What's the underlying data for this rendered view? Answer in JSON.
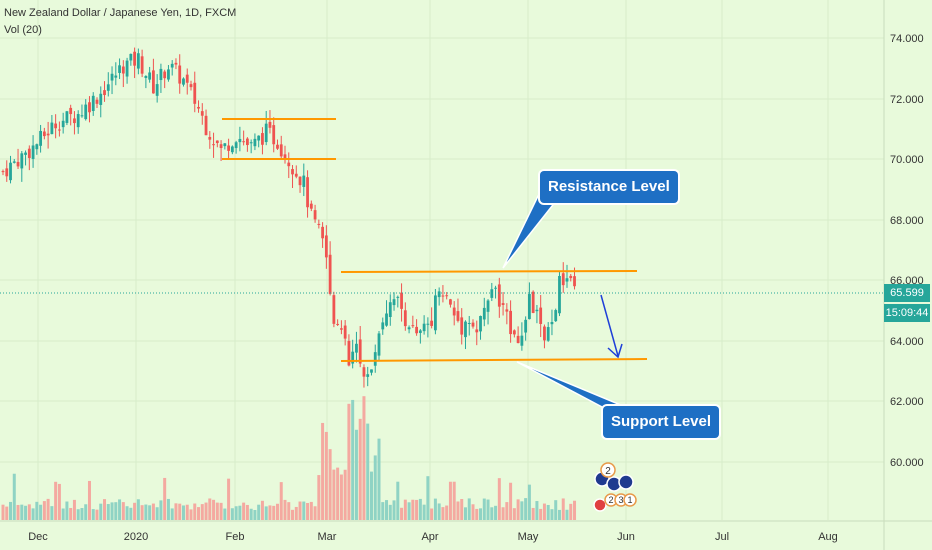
{
  "chart_info": {
    "symbol_title": "New Zealand Dollar / Japanese Yen, 1D, FXCM",
    "volume_indicator": "Vol (20)",
    "current_price": "65.599",
    "countdown": "15:09:44"
  },
  "annotations": {
    "resistance_label": "Resistance Level",
    "support_label": "Support Level",
    "event_badge_top": "2",
    "event_badge_bottom_1": "2",
    "event_badge_bottom_2": "3",
    "event_badge_bottom_3": "1"
  },
  "colors": {
    "background": "#e8fadb",
    "up_candle": "#26a69a",
    "down_candle": "#ef5350",
    "level_line": "#ff9800",
    "callout": "#1e6fc4",
    "arrow": "#1e3fd8",
    "price_tag": "#26a69a"
  },
  "chart_data": {
    "type": "candlestick",
    "title": "New Zealand Dollar / Japanese Yen, 1D, FXCM",
    "y_axis": {
      "ticks": [
        "74.000",
        "72.000",
        "70.000",
        "68.000",
        "66.000",
        "64.000",
        "62.000",
        "60.000"
      ],
      "range": [
        57.5,
        75.5
      ]
    },
    "x_axis": {
      "ticks": [
        "Dec",
        "2020",
        "Feb",
        "Mar",
        "Apr",
        "May",
        "Jun",
        "Jul",
        "Aug"
      ]
    },
    "levels": [
      {
        "name": "Resistance Level",
        "price": 66.25
      },
      {
        "name": "Support Level",
        "price": 63.4
      },
      {
        "name": "consolidation-top",
        "price": 71.3
      },
      {
        "name": "consolidation-bottom",
        "price": 70.0
      }
    ],
    "close_path": [
      [
        0,
        69.6
      ],
      [
        8,
        70.4
      ],
      [
        14,
        71.2
      ],
      [
        20,
        71.5
      ],
      [
        26,
        72.2
      ],
      [
        32,
        73.1
      ],
      [
        36,
        73.3
      ],
      [
        40,
        72.4
      ],
      [
        44,
        73.1
      ],
      [
        48,
        72.6
      ],
      [
        52,
        71.7
      ],
      [
        54,
        71.1
      ],
      [
        58,
        70.3
      ],
      [
        62,
        70.8
      ],
      [
        66,
        70.4
      ],
      [
        70,
        70.9
      ],
      [
        73,
        70.6
      ],
      [
        76,
        70.0
      ],
      [
        80,
        69.2
      ],
      [
        82,
        68.1
      ],
      [
        84,
        67.6
      ],
      [
        86,
        66.9
      ],
      [
        88,
        64.8
      ],
      [
        90,
        64.6
      ],
      [
        92,
        63.2
      ],
      [
        94,
        63.8
      ],
      [
        96,
        62.6
      ],
      [
        98,
        62.9
      ],
      [
        100,
        64.5
      ],
      [
        102,
        65.1
      ],
      [
        104,
        65.6
      ],
      [
        106,
        65.0
      ],
      [
        108,
        64.6
      ],
      [
        110,
        64.1
      ],
      [
        112,
        64.4
      ],
      [
        114,
        64.8
      ],
      [
        116,
        65.9
      ],
      [
        118,
        65.4
      ],
      [
        120,
        64.9
      ],
      [
        122,
        64.5
      ],
      [
        124,
        64.8
      ],
      [
        126,
        64.3
      ],
      [
        128,
        65.0
      ],
      [
        130,
        65.8
      ],
      [
        132,
        65.3
      ],
      [
        134,
        64.7
      ],
      [
        136,
        64.4
      ],
      [
        138,
        64.1
      ],
      [
        140,
        65.3
      ],
      [
        142,
        64.9
      ],
      [
        144,
        63.9
      ],
      [
        146,
        64.6
      ],
      [
        148,
        65.9
      ],
      [
        150,
        66.1
      ],
      [
        152,
        65.6
      ]
    ]
  }
}
